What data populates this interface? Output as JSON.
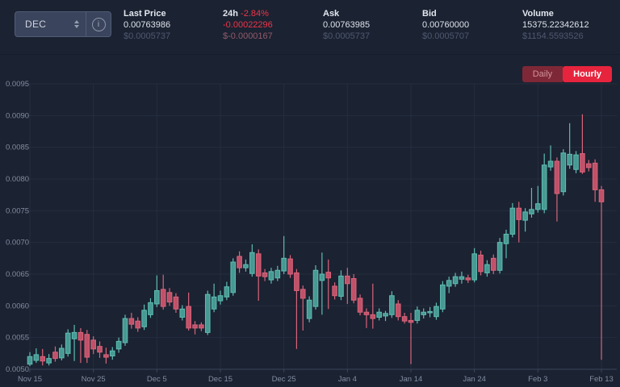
{
  "header": {
    "pair_selector": {
      "value": "DEC"
    },
    "stats": [
      {
        "label": "Last Price",
        "value": "0.00763986",
        "sub": "$0.0005737"
      },
      {
        "label": "24h",
        "change_pct": "-2.84%",
        "value": "-0.00022296",
        "sub": "$-0.0000167"
      },
      {
        "label": "Ask",
        "value": "0.00763985",
        "sub": "$0.0005737"
      },
      {
        "label": "Bid",
        "value": "0.00760000",
        "sub": "$0.0005707"
      },
      {
        "label": "Volume",
        "value": "15375.22342612",
        "sub": "$1154.5593526"
      }
    ]
  },
  "toolbar": {
    "daily_label": "Daily",
    "hourly_label": "Hourly",
    "active": "Hourly"
  },
  "colors": {
    "accent_red": "#e7243d",
    "up": "#479a93",
    "down": "#c05169",
    "background": "#1b2231"
  },
  "chart_data": {
    "type": "candlestick",
    "title": "",
    "ylim": [
      0.005,
      0.0095
    ],
    "y_ticks": [
      "0.0095",
      "0.0090",
      "0.0085",
      "0.0080",
      "0.0075",
      "0.0070",
      "0.0065",
      "0.0060",
      "0.0055",
      "0.0050"
    ],
    "x_ticks": [
      "Nov 15",
      "Nov 25",
      "Dec 5",
      "Dec 15",
      "Dec 25",
      "Jan 4",
      "Jan 14",
      "Jan 24",
      "Feb 3",
      "Feb 13"
    ],
    "grid": true,
    "grid_color": "#242e40",
    "axis_line_color": "#3a465c",
    "axis_text_color": "#828da1",
    "up_color": "#479a93",
    "up_edge": "#5fbcb2",
    "down_color": "#c05169",
    "down_edge": "#d8647b",
    "candles": [
      {
        "d": "Nov 15",
        "o": 0.00508,
        "h": 0.00527,
        "l": 0.00505,
        "c": 0.0052
      },
      {
        "d": "Nov 16",
        "o": 0.00514,
        "h": 0.00533,
        "l": 0.0051,
        "c": 0.00523
      },
      {
        "d": "Nov 17",
        "o": 0.0052,
        "h": 0.00532,
        "l": 0.00506,
        "c": 0.00513
      },
      {
        "d": "Nov 18",
        "o": 0.0051,
        "h": 0.00524,
        "l": 0.00506,
        "c": 0.00517
      },
      {
        "d": "Nov 19",
        "o": 0.00527,
        "h": 0.00536,
        "l": 0.00512,
        "c": 0.00517
      },
      {
        "d": "Nov 20",
        "o": 0.00518,
        "h": 0.00539,
        "l": 0.00514,
        "c": 0.00533
      },
      {
        "d": "Nov 21",
        "o": 0.00525,
        "h": 0.00563,
        "l": 0.0052,
        "c": 0.00557
      },
      {
        "d": "Nov 22",
        "o": 0.00548,
        "h": 0.0057,
        "l": 0.00513,
        "c": 0.00558
      },
      {
        "d": "Nov 23",
        "o": 0.00558,
        "h": 0.00565,
        "l": 0.0051,
        "c": 0.00546
      },
      {
        "d": "Nov 24",
        "o": 0.00555,
        "h": 0.00562,
        "l": 0.0051,
        "c": 0.00519
      },
      {
        "d": "Nov 25",
        "o": 0.00546,
        "h": 0.00552,
        "l": 0.00524,
        "c": 0.00532
      },
      {
        "d": "Nov 26",
        "o": 0.00536,
        "h": 0.00544,
        "l": 0.00518,
        "c": 0.00527
      },
      {
        "d": "Nov 27",
        "o": 0.00523,
        "h": 0.00534,
        "l": 0.00509,
        "c": 0.00519
      },
      {
        "d": "Nov 28",
        "o": 0.00521,
        "h": 0.00535,
        "l": 0.00515,
        "c": 0.00529
      },
      {
        "d": "Nov 29",
        "o": 0.00532,
        "h": 0.0055,
        "l": 0.00526,
        "c": 0.00544
      },
      {
        "d": "Nov 30",
        "o": 0.00542,
        "h": 0.00586,
        "l": 0.00537,
        "c": 0.0058
      },
      {
        "d": "Dec 1",
        "o": 0.0058,
        "h": 0.00589,
        "l": 0.00564,
        "c": 0.00571
      },
      {
        "d": "Dec 2",
        "o": 0.00576,
        "h": 0.00582,
        "l": 0.00559,
        "c": 0.00565
      },
      {
        "d": "Dec 3",
        "o": 0.00567,
        "h": 0.00602,
        "l": 0.00562,
        "c": 0.00593
      },
      {
        "d": "Dec 4",
        "o": 0.00586,
        "h": 0.00612,
        "l": 0.00581,
        "c": 0.00605
      },
      {
        "d": "Dec 5",
        "o": 0.00603,
        "h": 0.00648,
        "l": 0.00598,
        "c": 0.00624
      },
      {
        "d": "Dec 6",
        "o": 0.00626,
        "h": 0.00649,
        "l": 0.00594,
        "c": 0.00599
      },
      {
        "d": "Dec 7",
        "o": 0.00621,
        "h": 0.00628,
        "l": 0.006,
        "c": 0.00606
      },
      {
        "d": "Dec 8",
        "o": 0.00614,
        "h": 0.0062,
        "l": 0.00589,
        "c": 0.00595
      },
      {
        "d": "Dec 9",
        "o": 0.00582,
        "h": 0.00601,
        "l": 0.00577,
        "c": 0.00595
      },
      {
        "d": "Dec 10",
        "o": 0.00599,
        "h": 0.00621,
        "l": 0.00561,
        "c": 0.00565
      },
      {
        "d": "Dec 11",
        "o": 0.0057,
        "h": 0.00576,
        "l": 0.00555,
        "c": 0.00565
      },
      {
        "d": "Dec 12",
        "o": 0.0057,
        "h": 0.00574,
        "l": 0.0056,
        "c": 0.00565
      },
      {
        "d": "Dec 13",
        "o": 0.00558,
        "h": 0.00624,
        "l": 0.00554,
        "c": 0.00618
      },
      {
        "d": "Dec 14",
        "o": 0.00595,
        "h": 0.00635,
        "l": 0.0059,
        "c": 0.00614
      },
      {
        "d": "Dec 15",
        "o": 0.00608,
        "h": 0.00624,
        "l": 0.00602,
        "c": 0.00616
      },
      {
        "d": "Dec 16",
        "o": 0.00614,
        "h": 0.00638,
        "l": 0.00609,
        "c": 0.0063
      },
      {
        "d": "Dec 17",
        "o": 0.00621,
        "h": 0.00675,
        "l": 0.00616,
        "c": 0.00669
      },
      {
        "d": "Dec 18",
        "o": 0.00678,
        "h": 0.00686,
        "l": 0.00652,
        "c": 0.0066
      },
      {
        "d": "Dec 19",
        "o": 0.0066,
        "h": 0.00673,
        "l": 0.00654,
        "c": 0.00665
      },
      {
        "d": "Dec 20",
        "o": 0.00651,
        "h": 0.00697,
        "l": 0.00646,
        "c": 0.00684
      },
      {
        "d": "Dec 21",
        "o": 0.00682,
        "h": 0.00689,
        "l": 0.00608,
        "c": 0.00647
      },
      {
        "d": "Dec 22",
        "o": 0.00652,
        "h": 0.00658,
        "l": 0.00639,
        "c": 0.00646
      },
      {
        "d": "Dec 23",
        "o": 0.00641,
        "h": 0.0066,
        "l": 0.00635,
        "c": 0.00654
      },
      {
        "d": "Dec 24",
        "o": 0.00644,
        "h": 0.00663,
        "l": 0.00639,
        "c": 0.00656
      },
      {
        "d": "Dec 25",
        "o": 0.00655,
        "h": 0.0071,
        "l": 0.0065,
        "c": 0.00675
      },
      {
        "d": "Dec 26",
        "o": 0.00674,
        "h": 0.0068,
        "l": 0.00644,
        "c": 0.0065
      },
      {
        "d": "Dec 27",
        "o": 0.00652,
        "h": 0.00658,
        "l": 0.00532,
        "c": 0.00624
      },
      {
        "d": "Dec 28",
        "o": 0.00626,
        "h": 0.00632,
        "l": 0.00561,
        "c": 0.00612
      },
      {
        "d": "Dec 29",
        "o": 0.0058,
        "h": 0.00615,
        "l": 0.00574,
        "c": 0.00609
      },
      {
        "d": "Dec 30",
        "o": 0.00599,
        "h": 0.00664,
        "l": 0.00594,
        "c": 0.00656
      },
      {
        "d": "Dec 31",
        "o": 0.0064,
        "h": 0.00684,
        "l": 0.00586,
        "c": 0.0065
      },
      {
        "d": "Jan 1",
        "o": 0.00653,
        "h": 0.00673,
        "l": 0.00595,
        "c": 0.00644
      },
      {
        "d": "Jan 2",
        "o": 0.00631,
        "h": 0.00637,
        "l": 0.0061,
        "c": 0.00616
      },
      {
        "d": "Jan 3",
        "o": 0.00615,
        "h": 0.00656,
        "l": 0.00609,
        "c": 0.00647
      },
      {
        "d": "Jan 4",
        "o": 0.00647,
        "h": 0.0066,
        "l": 0.00603,
        "c": 0.00635
      },
      {
        "d": "Jan 5",
        "o": 0.00643,
        "h": 0.0065,
        "l": 0.00604,
        "c": 0.00609
      },
      {
        "d": "Jan 6",
        "o": 0.00612,
        "h": 0.00618,
        "l": 0.00585,
        "c": 0.0059
      },
      {
        "d": "Jan 7",
        "o": 0.0059,
        "h": 0.00596,
        "l": 0.00565,
        "c": 0.00586
      },
      {
        "d": "Jan 8",
        "o": 0.00586,
        "h": 0.00635,
        "l": 0.00564,
        "c": 0.0058
      },
      {
        "d": "Jan 9",
        "o": 0.00582,
        "h": 0.00596,
        "l": 0.00577,
        "c": 0.0059
      },
      {
        "d": "Jan 10",
        "o": 0.00584,
        "h": 0.00592,
        "l": 0.00576,
        "c": 0.00588
      },
      {
        "d": "Jan 11",
        "o": 0.00586,
        "h": 0.00623,
        "l": 0.00581,
        "c": 0.00616
      },
      {
        "d": "Jan 12",
        "o": 0.00603,
        "h": 0.00609,
        "l": 0.00577,
        "c": 0.00583
      },
      {
        "d": "Jan 13",
        "o": 0.00583,
        "h": 0.00589,
        "l": 0.00572,
        "c": 0.00576
      },
      {
        "d": "Jan 14",
        "o": 0.00577,
        "h": 0.00589,
        "l": 0.00508,
        "c": 0.00574
      },
      {
        "d": "Jan 15",
        "o": 0.00577,
        "h": 0.00599,
        "l": 0.00572,
        "c": 0.00593
      },
      {
        "d": "Jan 16",
        "o": 0.00586,
        "h": 0.00596,
        "l": 0.0058,
        "c": 0.0059
      },
      {
        "d": "Jan 17",
        "o": 0.00589,
        "h": 0.00598,
        "l": 0.00582,
        "c": 0.00591
      },
      {
        "d": "Jan 18",
        "o": 0.00583,
        "h": 0.00605,
        "l": 0.00578,
        "c": 0.00599
      },
      {
        "d": "Jan 19",
        "o": 0.00595,
        "h": 0.00639,
        "l": 0.0059,
        "c": 0.00633
      },
      {
        "d": "Jan 20",
        "o": 0.00631,
        "h": 0.00646,
        "l": 0.0062,
        "c": 0.0064
      },
      {
        "d": "Jan 21",
        "o": 0.00635,
        "h": 0.00652,
        "l": 0.0063,
        "c": 0.00646
      },
      {
        "d": "Jan 22",
        "o": 0.00642,
        "h": 0.00654,
        "l": 0.00635,
        "c": 0.00646
      },
      {
        "d": "Jan 23",
        "o": 0.00644,
        "h": 0.00649,
        "l": 0.00636,
        "c": 0.00641
      },
      {
        "d": "Jan 24",
        "o": 0.00641,
        "h": 0.00691,
        "l": 0.00637,
        "c": 0.00682
      },
      {
        "d": "Jan 25",
        "o": 0.0068,
        "h": 0.00687,
        "l": 0.00648,
        "c": 0.00654
      },
      {
        "d": "Jan 26",
        "o": 0.00652,
        "h": 0.00672,
        "l": 0.00646,
        "c": 0.00665
      },
      {
        "d": "Jan 27",
        "o": 0.00675,
        "h": 0.00681,
        "l": 0.0065,
        "c": 0.00656
      },
      {
        "d": "Jan 28",
        "o": 0.00656,
        "h": 0.00707,
        "l": 0.00651,
        "c": 0.007
      },
      {
        "d": "Jan 29",
        "o": 0.00698,
        "h": 0.0072,
        "l": 0.00675,
        "c": 0.00713
      },
      {
        "d": "Jan 30",
        "o": 0.00713,
        "h": 0.00762,
        "l": 0.00708,
        "c": 0.00754
      },
      {
        "d": "Jan 31",
        "o": 0.00754,
        "h": 0.00764,
        "l": 0.007,
        "c": 0.00736
      },
      {
        "d": "Feb 1",
        "o": 0.00735,
        "h": 0.00754,
        "l": 0.00717,
        "c": 0.00748
      },
      {
        "d": "Feb 2",
        "o": 0.00745,
        "h": 0.00786,
        "l": 0.00739,
        "c": 0.00752
      },
      {
        "d": "Feb 3",
        "o": 0.00752,
        "h": 0.00789,
        "l": 0.00747,
        "c": 0.00761
      },
      {
        "d": "Feb 4",
        "o": 0.00752,
        "h": 0.0084,
        "l": 0.00746,
        "c": 0.00822
      },
      {
        "d": "Feb 5",
        "o": 0.00819,
        "h": 0.00853,
        "l": 0.00813,
        "c": 0.00828
      },
      {
        "d": "Feb 6",
        "o": 0.00828,
        "h": 0.00834,
        "l": 0.00733,
        "c": 0.00777
      },
      {
        "d": "Feb 7",
        "o": 0.0078,
        "h": 0.00847,
        "l": 0.00774,
        "c": 0.00841
      },
      {
        "d": "Feb 8",
        "o": 0.00822,
        "h": 0.00888,
        "l": 0.00816,
        "c": 0.00839
      },
      {
        "d": "Feb 9",
        "o": 0.00815,
        "h": 0.00844,
        "l": 0.00809,
        "c": 0.00838
      },
      {
        "d": "Feb 10",
        "o": 0.0084,
        "h": 0.00902,
        "l": 0.00808,
        "c": 0.00811
      },
      {
        "d": "Feb 11",
        "o": 0.00824,
        "h": 0.0083,
        "l": 0.00812,
        "c": 0.00818
      },
      {
        "d": "Feb 12",
        "o": 0.00825,
        "h": 0.00831,
        "l": 0.00764,
        "c": 0.00783
      },
      {
        "d": "Feb 13",
        "o": 0.00783,
        "h": 0.00789,
        "l": 0.00515,
        "c": 0.00764
      }
    ]
  }
}
